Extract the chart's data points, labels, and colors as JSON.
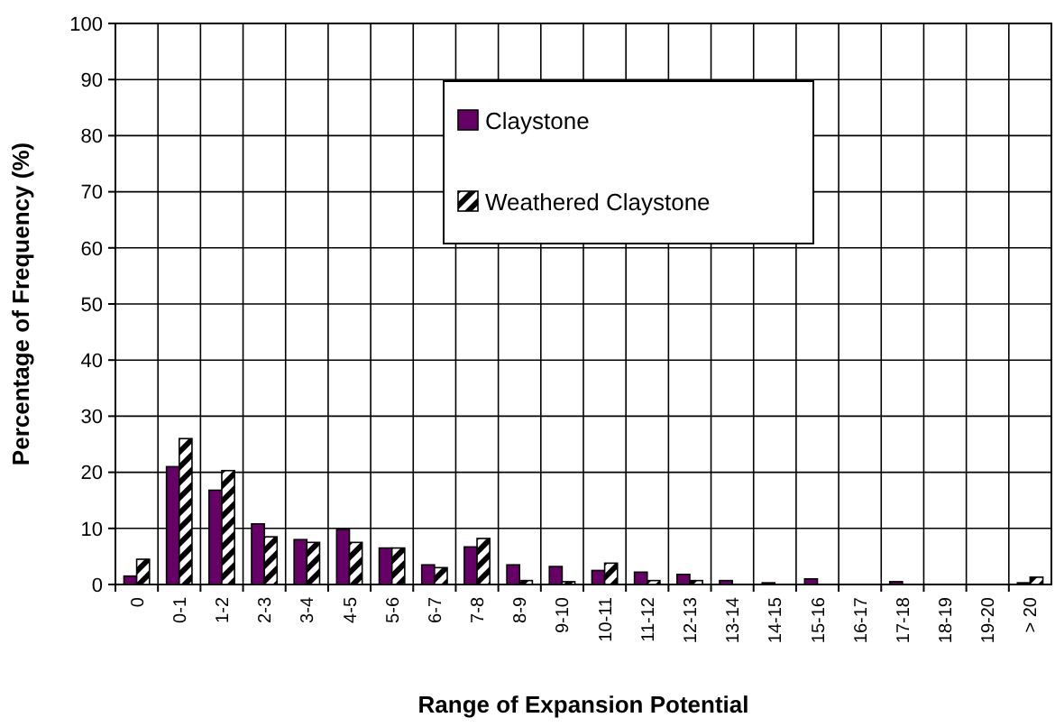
{
  "chart_data": {
    "type": "bar",
    "xlabel": "Range of Expansion Potential",
    "ylabel": "Percentage of Frequency (%)",
    "categories": [
      "0",
      "0-1",
      "1-2",
      "2-3",
      "3-4",
      "4-5",
      "5-6",
      "6-7",
      "7-8",
      "8-9",
      "9-10",
      "10-11",
      "11-12",
      "12-13",
      "13-14",
      "14-15",
      "15-16",
      "16-17",
      "17-18",
      "18-19",
      "19-20",
      "> 20"
    ],
    "series": [
      {
        "name": "Claystone",
        "color": "#660066",
        "values": [
          1.5,
          21,
          16.8,
          10.8,
          8,
          9.8,
          6.5,
          3.5,
          6.7,
          3.5,
          3.2,
          2.5,
          2.2,
          1.8,
          0.7,
          0.3,
          1,
          0,
          0.5,
          0,
          0,
          0.3
        ]
      },
      {
        "name": "Weathered Claystone",
        "color": "#000000",
        "values": [
          4.5,
          26,
          20.3,
          8.5,
          7.5,
          7.5,
          6.5,
          3,
          8.2,
          0.7,
          0.5,
          3.8,
          0.7,
          0.7,
          0,
          0,
          0,
          0,
          0,
          0,
          0,
          1.3
        ]
      }
    ],
    "ylim": [
      0,
      100
    ],
    "yticks": [
      0,
      10,
      20,
      30,
      40,
      50,
      60,
      70,
      80,
      90,
      100
    ],
    "grid": true,
    "legend": "top"
  }
}
